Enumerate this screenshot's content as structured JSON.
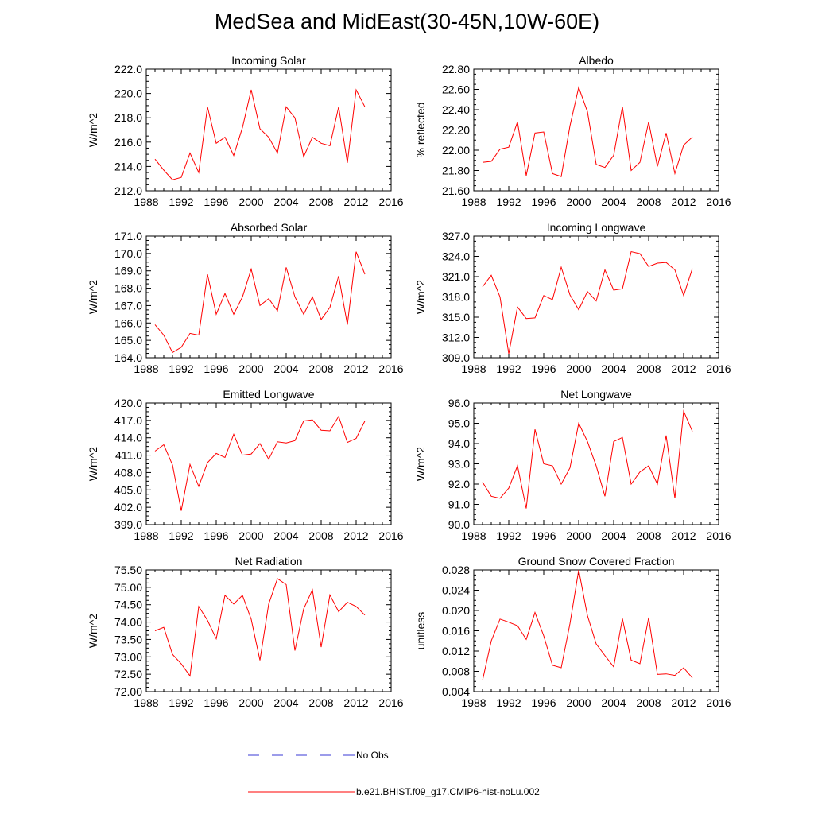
{
  "title": "MedSea and MidEast(30-45N,10W-60E)",
  "colors": {
    "model": "#ff0000",
    "obs": "#3a3ad6",
    "axis": "#000000"
  },
  "legend": {
    "items": [
      "No Obs",
      "b.e21.BHIST.f09_g17.CMIP6-hist-noLu.002"
    ]
  },
  "chart_data": [
    {
      "type": "line",
      "title": "Incoming Solar",
      "xlabel": "",
      "ylabel": "W/m^2",
      "xlim": [
        1988,
        2016
      ],
      "ylim": [
        212.0,
        222.0
      ],
      "xticks": [
        1988,
        1992,
        1996,
        2000,
        2004,
        2008,
        2012,
        2016
      ],
      "yticks": [
        212.0,
        214.0,
        216.0,
        218.0,
        220.0,
        222.0
      ],
      "ydec": 1,
      "series": [
        {
          "name": "b.e21.BHIST.f09_g17.CMIP6-hist-noLu.002",
          "x": [
            1989,
            1990,
            1991,
            1992,
            1993,
            1994,
            1995,
            1996,
            1997,
            1998,
            1999,
            2000,
            2001,
            2002,
            2003,
            2004,
            2005,
            2006,
            2007,
            2008,
            2009,
            2010,
            2011,
            2012,
            2013
          ],
          "values": [
            214.6,
            213.7,
            212.9,
            213.1,
            215.1,
            213.5,
            218.9,
            215.9,
            216.4,
            214.9,
            217.2,
            220.3,
            217.1,
            216.4,
            215.1,
            218.9,
            218.0,
            214.8,
            216.4,
            215.9,
            215.7,
            218.9,
            214.3,
            220.3,
            218.9
          ]
        }
      ]
    },
    {
      "type": "line",
      "title": "Albedo",
      "xlabel": "",
      "ylabel": "% reflected",
      "xlim": [
        1988,
        2016
      ],
      "ylim": [
        21.6,
        22.8
      ],
      "xticks": [
        1988,
        1992,
        1996,
        2000,
        2004,
        2008,
        2012,
        2016
      ],
      "yticks": [
        21.6,
        21.8,
        22.0,
        22.2,
        22.4,
        22.6,
        22.8
      ],
      "ydec": 2,
      "series": [
        {
          "name": "b.e21.BHIST.f09_g17.CMIP6-hist-noLu.002",
          "x": [
            1989,
            1990,
            1991,
            1992,
            1993,
            1994,
            1995,
            1996,
            1997,
            1998,
            1999,
            2000,
            2001,
            2002,
            2003,
            2004,
            2005,
            2006,
            2007,
            2008,
            2009,
            2010,
            2011,
            2012,
            2013
          ],
          "values": [
            21.88,
            21.89,
            22.01,
            22.03,
            22.28,
            21.75,
            22.17,
            22.18,
            21.77,
            21.74,
            22.24,
            22.62,
            22.38,
            21.86,
            21.83,
            21.95,
            22.43,
            21.8,
            21.88,
            22.28,
            21.84,
            22.17,
            21.77,
            22.05,
            22.13
          ]
        }
      ]
    },
    {
      "type": "line",
      "title": "Absorbed Solar",
      "xlabel": "",
      "ylabel": "W/m^2",
      "xlim": [
        1988,
        2016
      ],
      "ylim": [
        164.0,
        171.0
      ],
      "xticks": [
        1988,
        1992,
        1996,
        2000,
        2004,
        2008,
        2012,
        2016
      ],
      "yticks": [
        164.0,
        165.0,
        166.0,
        167.0,
        168.0,
        169.0,
        170.0,
        171.0
      ],
      "ydec": 1,
      "series": [
        {
          "name": "b.e21.BHIST.f09_g17.CMIP6-hist-noLu.002",
          "x": [
            1989,
            1990,
            1991,
            1992,
            1993,
            1994,
            1995,
            1996,
            1997,
            1998,
            1999,
            2000,
            2001,
            2002,
            2003,
            2004,
            2005,
            2006,
            2007,
            2008,
            2009,
            2010,
            2011,
            2012,
            2013
          ],
          "values": [
            165.9,
            165.3,
            164.3,
            164.6,
            165.4,
            165.3,
            168.8,
            166.5,
            167.7,
            166.5,
            167.5,
            169.1,
            167.0,
            167.4,
            166.7,
            169.2,
            167.5,
            166.5,
            167.5,
            166.2,
            166.9,
            168.7,
            165.9,
            170.1,
            168.8
          ]
        }
      ]
    },
    {
      "type": "line",
      "title": "Incoming Longwave",
      "xlabel": "",
      "ylabel": "W/m^2",
      "xlim": [
        1988,
        2016
      ],
      "ylim": [
        309.0,
        327.0
      ],
      "xticks": [
        1988,
        1992,
        1996,
        2000,
        2004,
        2008,
        2012,
        2016
      ],
      "yticks": [
        309.0,
        312.0,
        315.0,
        318.0,
        321.0,
        324.0,
        327.0
      ],
      "ydec": 1,
      "series": [
        {
          "name": "b.e21.BHIST.f09_g17.CMIP6-hist-noLu.002",
          "x": [
            1989,
            1990,
            1991,
            1992,
            1993,
            1994,
            1995,
            1996,
            1997,
            1998,
            1999,
            2000,
            2001,
            2002,
            2003,
            2004,
            2005,
            2006,
            2007,
            2008,
            2009,
            2010,
            2011,
            2012,
            2013
          ],
          "values": [
            319.5,
            321.2,
            318.0,
            309.6,
            316.5,
            314.8,
            314.9,
            318.2,
            317.6,
            322.4,
            318.3,
            316.1,
            318.8,
            317.4,
            322.0,
            319.0,
            319.2,
            324.7,
            324.4,
            322.5,
            323.0,
            323.1,
            322.0,
            318.2,
            322.2
          ]
        }
      ]
    },
    {
      "type": "line",
      "title": "Emitted Longwave",
      "xlabel": "",
      "ylabel": "W/m^2",
      "xlim": [
        1988,
        2016
      ],
      "ylim": [
        399.0,
        420.0
      ],
      "xticks": [
        1988,
        1992,
        1996,
        2000,
        2004,
        2008,
        2012,
        2016
      ],
      "yticks": [
        399.0,
        402.0,
        405.0,
        408.0,
        411.0,
        414.0,
        417.0,
        420.0
      ],
      "ydec": 1,
      "series": [
        {
          "name": "b.e21.BHIST.f09_g17.CMIP6-hist-noLu.002",
          "x": [
            1989,
            1990,
            1991,
            1992,
            1993,
            1994,
            1995,
            1996,
            1997,
            1998,
            1999,
            2000,
            2001,
            2002,
            2003,
            2004,
            2005,
            2006,
            2007,
            2008,
            2009,
            2010,
            2011,
            2012,
            2013
          ],
          "values": [
            411.7,
            412.8,
            409.3,
            401.4,
            409.4,
            405.6,
            409.7,
            411.3,
            410.6,
            414.6,
            411.0,
            411.2,
            413.0,
            410.3,
            413.3,
            413.1,
            413.5,
            416.9,
            417.1,
            415.3,
            415.2,
            417.7,
            413.2,
            413.9,
            416.9
          ]
        }
      ]
    },
    {
      "type": "line",
      "title": "Net Longwave",
      "xlabel": "",
      "ylabel": "W/m^2",
      "xlim": [
        1988,
        2016
      ],
      "ylim": [
        90.0,
        96.0
      ],
      "xticks": [
        1988,
        1992,
        1996,
        2000,
        2004,
        2008,
        2012,
        2016
      ],
      "yticks": [
        90.0,
        91.0,
        92.0,
        93.0,
        94.0,
        95.0,
        96.0
      ],
      "ydec": 1,
      "series": [
        {
          "name": "b.e21.BHIST.f09_g17.CMIP6-hist-noLu.002",
          "x": [
            1989,
            1990,
            1991,
            1992,
            1993,
            1994,
            1995,
            1996,
            1997,
            1998,
            1999,
            2000,
            2001,
            2002,
            2003,
            2004,
            2005,
            2006,
            2007,
            2008,
            2009,
            2010,
            2011,
            2012,
            2013
          ],
          "values": [
            92.1,
            91.4,
            91.3,
            91.8,
            92.9,
            90.8,
            94.7,
            93.0,
            92.9,
            92.0,
            92.8,
            95.0,
            94.1,
            92.9,
            91.4,
            94.1,
            94.3,
            92.0,
            92.6,
            92.9,
            92.0,
            94.4,
            91.3,
            95.6,
            94.6
          ]
        }
      ]
    },
    {
      "type": "line",
      "title": "Net Radiation",
      "xlabel": "",
      "ylabel": "W/m^2",
      "xlim": [
        1988,
        2016
      ],
      "ylim": [
        72.0,
        75.5
      ],
      "xticks": [
        1988,
        1992,
        1996,
        2000,
        2004,
        2008,
        2012,
        2016
      ],
      "yticks": [
        72.0,
        72.5,
        73.0,
        73.5,
        74.0,
        74.5,
        75.0,
        75.5
      ],
      "ydec": 2,
      "series": [
        {
          "name": "b.e21.BHIST.f09_g17.CMIP6-hist-noLu.002",
          "x": [
            1989,
            1990,
            1991,
            1992,
            1993,
            1994,
            1995,
            1996,
            1997,
            1998,
            1999,
            2000,
            2001,
            2002,
            2003,
            2004,
            2005,
            2006,
            2007,
            2008,
            2009,
            2010,
            2011,
            2012,
            2013
          ],
          "values": [
            73.75,
            73.85,
            73.07,
            72.8,
            72.45,
            74.45,
            74.05,
            73.52,
            74.77,
            74.52,
            74.77,
            74.08,
            72.9,
            74.52,
            75.25,
            75.08,
            73.18,
            74.38,
            74.93,
            73.28,
            74.78,
            74.3,
            74.57,
            74.45,
            74.2
          ]
        }
      ]
    },
    {
      "type": "line",
      "title": "Ground Snow Covered Fraction",
      "xlabel": "",
      "ylabel": "unitless",
      "xlim": [
        1988,
        2016
      ],
      "ylim": [
        0.004,
        0.028
      ],
      "xticks": [
        1988,
        1992,
        1996,
        2000,
        2004,
        2008,
        2012,
        2016
      ],
      "yticks": [
        0.004,
        0.008,
        0.012,
        0.016,
        0.02,
        0.024,
        0.028
      ],
      "ydec": 3,
      "series": [
        {
          "name": "b.e21.BHIST.f09_g17.CMIP6-hist-noLu.002",
          "x": [
            1989,
            1990,
            1991,
            1992,
            1993,
            1994,
            1995,
            1996,
            1997,
            1998,
            1999,
            2000,
            2001,
            2002,
            2003,
            2004,
            2005,
            2006,
            2007,
            2008,
            2009,
            2010,
            2011,
            2012,
            2013
          ],
          "values": [
            0.0062,
            0.014,
            0.0183,
            0.0177,
            0.017,
            0.0143,
            0.0196,
            0.015,
            0.0092,
            0.0087,
            0.0174,
            0.028,
            0.019,
            0.0134,
            0.0111,
            0.0089,
            0.0184,
            0.0102,
            0.0095,
            0.0186,
            0.0074,
            0.0075,
            0.0072,
            0.0087,
            0.0067
          ]
        }
      ]
    }
  ]
}
